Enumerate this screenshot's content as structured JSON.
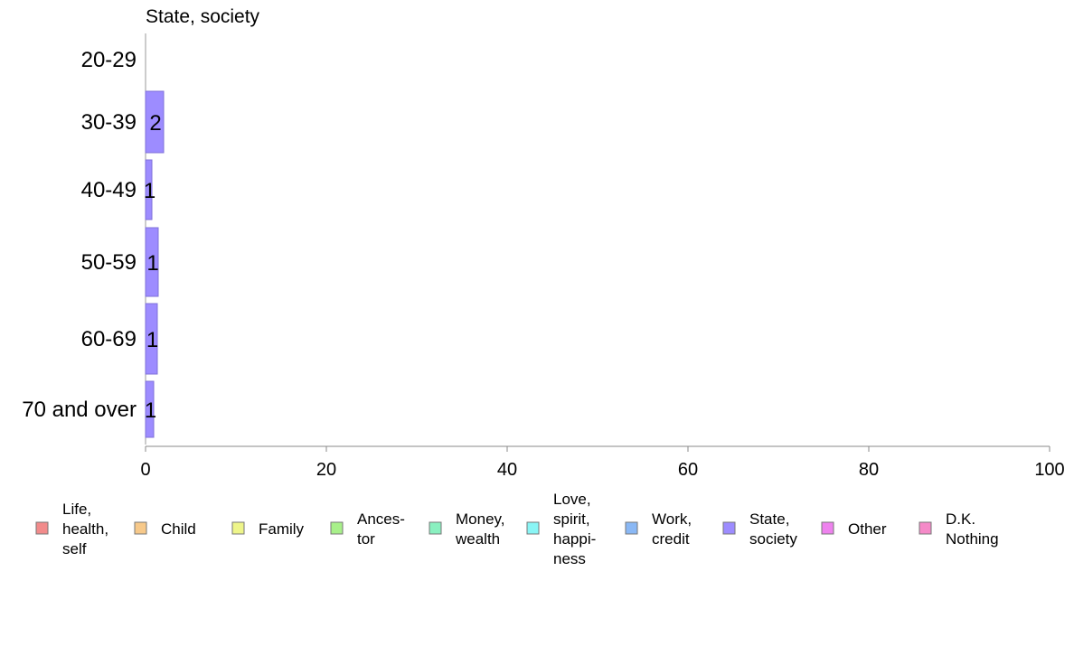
{
  "chart_data": {
    "type": "bar",
    "orientation": "horizontal",
    "title": "State, society",
    "categories": [
      "20-29",
      "30-39",
      "40-49",
      "50-59",
      "60-69",
      "70 and over"
    ],
    "values": [
      0,
      2,
      0.7,
      1.4,
      1.3,
      0.9
    ],
    "data_labels": [
      "",
      "2",
      "1",
      "1",
      "1",
      "1"
    ],
    "xlim": [
      0,
      100
    ],
    "x_ticks": [
      0,
      20,
      40,
      60,
      80,
      100
    ],
    "bar_color": "#9d8cff",
    "grid": false,
    "legend_position": "bottom",
    "legend": [
      {
        "lines": [
          "Life,",
          "health,",
          "self"
        ],
        "color": "#f28b8b"
      },
      {
        "lines": [
          "Child"
        ],
        "color": "#f7c98a"
      },
      {
        "lines": [
          "Family"
        ],
        "color": "#eef58a"
      },
      {
        "lines": [
          "Ances-",
          "tor"
        ],
        "color": "#a8f08a"
      },
      {
        "lines": [
          "Money,",
          "wealth"
        ],
        "color": "#8af0c0"
      },
      {
        "lines": [
          "Love,",
          "spirit,",
          "happi-",
          "ness"
        ],
        "color": "#8af5f5"
      },
      {
        "lines": [
          "Work,",
          "credit"
        ],
        "color": "#8ab8f5"
      },
      {
        "lines": [
          "State,",
          "society"
        ],
        "color": "#9d8cff"
      },
      {
        "lines": [
          "Other"
        ],
        "color": "#ee82ee"
      },
      {
        "lines": [
          "D.K.",
          "Nothing"
        ],
        "color": "#f58ac8"
      }
    ]
  }
}
